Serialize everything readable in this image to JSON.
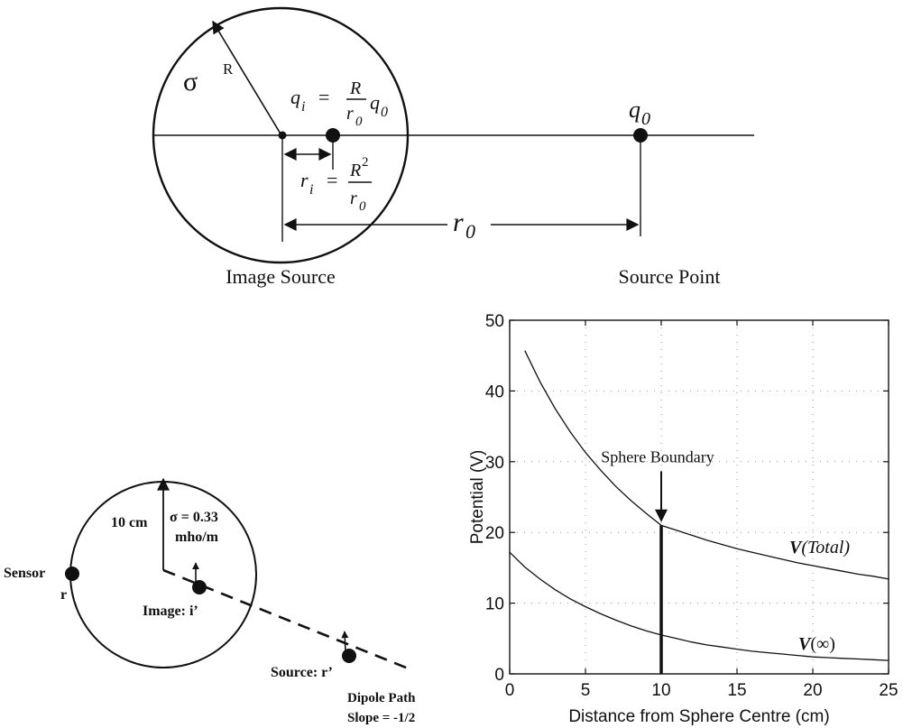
{
  "top_diagram": {
    "sigma": "σ",
    "radius_label": "R",
    "image_charge": {
      "q": "q",
      "q_sub": "i",
      "eq": "=",
      "num": "R",
      "den": "r",
      "den_sub": "0",
      "q0": "q",
      "q0_sub": "0"
    },
    "image_distance": {
      "r": "r",
      "r_sub": "i",
      "eq": "=",
      "num": "R",
      "num_sup": "2",
      "den": "r",
      "den_sub": "0"
    },
    "source_label": {
      "q": "q",
      "sub": "0"
    },
    "distance_label": {
      "r": "r",
      "sub": "0"
    },
    "caption_left": "Image Source",
    "caption_right": "Source Point"
  },
  "bottom_diagram": {
    "radius_label": "10 cm",
    "sigma_line1": "σ = 0.33",
    "sigma_line2": "mho/m",
    "sensor_label": "Sensor",
    "sensor_sub": "r",
    "image_label": "Image: i’",
    "source_label": "Source: r’",
    "path_line1": "Dipole Path",
    "path_line2": "Slope = -1/2"
  },
  "chart_data": {
    "type": "line",
    "xlabel": "Distance from Sphere Centre (cm)",
    "ylabel": "Potential (V)",
    "xlim": [
      0,
      25
    ],
    "ylim": [
      0,
      50
    ],
    "x_ticks": [
      0,
      5,
      10,
      15,
      20,
      25
    ],
    "y_ticks": [
      0,
      10,
      20,
      30,
      40,
      50
    ],
    "grid": "dotted",
    "series": [
      {
        "name": "V(Total)",
        "x": [
          1,
          2,
          3,
          4,
          5,
          6,
          7,
          8,
          9,
          10,
          11,
          12,
          13,
          14,
          15,
          16,
          17,
          18,
          19,
          20,
          21,
          22,
          23,
          24,
          25
        ],
        "y": [
          45.7,
          41.3,
          37.5,
          34.2,
          31.3,
          28.8,
          26.5,
          24.5,
          22.7,
          21,
          20.3,
          19.6,
          18.9,
          18.3,
          17.7,
          17.2,
          16.7,
          16.2,
          15.7,
          15.3,
          14.9,
          14.5,
          14.1,
          13.8,
          13.4
        ]
      },
      {
        "name": "V(∞)",
        "x": [
          0,
          1,
          2,
          3,
          4,
          5,
          6,
          7,
          8,
          9,
          10,
          11,
          12,
          13,
          14,
          15,
          16,
          17,
          18,
          19,
          20,
          21,
          22,
          23,
          24,
          25
        ],
        "y": [
          17.2,
          15.1,
          13.4,
          11.9,
          10.6,
          9.5,
          8.5,
          7.6,
          6.8,
          6.1,
          5.5,
          5,
          4.5,
          4.1,
          3.8,
          3.5,
          3.2,
          3,
          2.8,
          2.6,
          2.4,
          2.3,
          2.2,
          2.1,
          2,
          1.9
        ]
      }
    ],
    "boundary": {
      "x": 10,
      "y_top": 21,
      "label": "Sphere Boundary"
    },
    "curve_labels": {
      "total": {
        "v": "V",
        "text": "(Total)"
      },
      "inf": {
        "v": "V",
        "text": "(∞)"
      }
    }
  }
}
